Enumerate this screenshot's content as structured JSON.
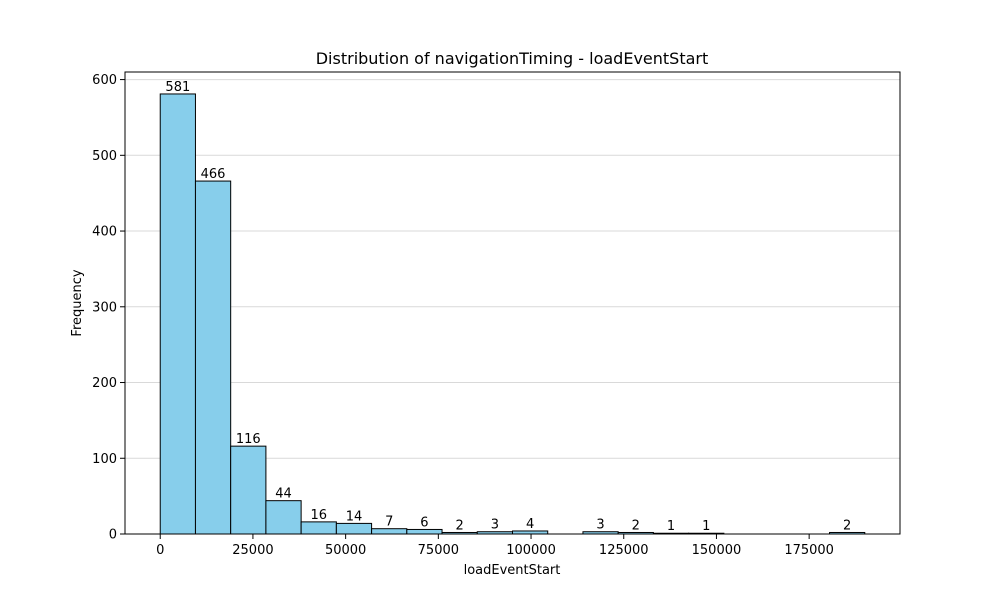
{
  "chart_data": {
    "type": "bar",
    "title": "Distribution of navigationTiming - loadEventStart",
    "xlabel": "loadEventStart",
    "ylabel": "Frequency",
    "xlim": [
      -9500,
      199500
    ],
    "ylim": [
      0,
      610
    ],
    "bin_start": 0,
    "bin_width": 9500,
    "counts": [
      581,
      466,
      116,
      44,
      16,
      14,
      7,
      6,
      2,
      3,
      4,
      0,
      3,
      2,
      1,
      1,
      0,
      0,
      0,
      2
    ],
    "x_ticks": [
      0,
      25000,
      50000,
      75000,
      100000,
      125000,
      150000,
      175000
    ],
    "x_tick_labels": [
      "0",
      "25000",
      "50000",
      "75000",
      "100000",
      "125000",
      "150000",
      "175000"
    ],
    "y_ticks": [
      0,
      100,
      200,
      300,
      400,
      500,
      600
    ],
    "y_tick_labels": [
      "0",
      "100",
      "200",
      "300",
      "400",
      "500",
      "600"
    ],
    "grid": "y",
    "colors": {
      "bar_fill": "#87ceeb",
      "bar_edge": "#000000",
      "grid": "#d9d9d9"
    }
  }
}
